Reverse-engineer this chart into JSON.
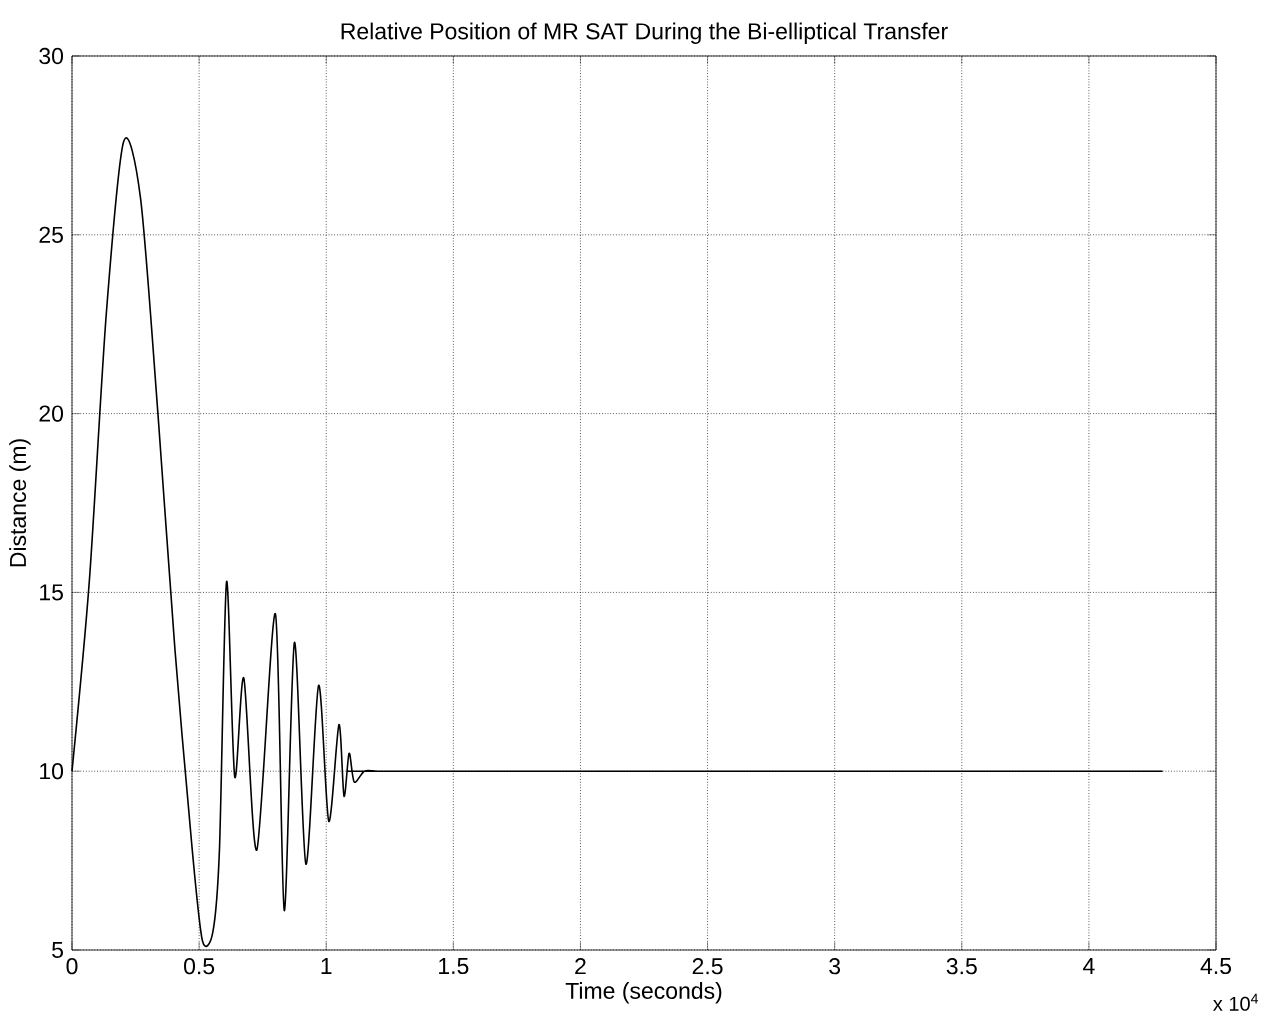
{
  "chart_data": {
    "type": "line",
    "title": "Relative Position of MR SAT During the Bi-elliptical Transfer",
    "xlabel": "Time (seconds)",
    "ylabel": "Distance (m)",
    "annotations": [
      "x 10$^{4}$"
    ],
    "xlim": [
      0,
      4.5
    ],
    "ylim": [
      5,
      30
    ],
    "xticks": [
      0,
      0.5,
      1,
      1.5,
      2,
      2.5,
      3,
      3.5,
      4,
      4.5
    ],
    "yticks": [
      5,
      10,
      15,
      20,
      25,
      30
    ],
    "grid": true,
    "marker": "none",
    "line_style": "solid",
    "series": [
      {
        "color": "#000000",
        "x": [
          0,
          0.068,
          0.135,
          0.203,
          0.27,
          0.338,
          0.405,
          0.473,
          0.513,
          0.554,
          0.58,
          0.608,
          0.64,
          0.676,
          0.727,
          0.8,
          0.835,
          0.875,
          0.92,
          0.97,
          1.01,
          1.05,
          1.07,
          1.09,
          1.11,
          1.15,
          1.2,
          1.3,
          4.29
        ],
        "values": [
          10,
          15.3,
          22.8,
          27.6,
          26.0,
          20.0,
          13.4,
          7.8,
          5.26,
          5.5,
          7.8,
          15.3,
          9.85,
          12.6,
          7.8,
          14.4,
          6.1,
          13.6,
          7.4,
          12.4,
          8.6,
          11.3,
          9.3,
          10.5,
          9.7,
          10,
          10,
          10,
          10
        ]
      }
    ]
  }
}
